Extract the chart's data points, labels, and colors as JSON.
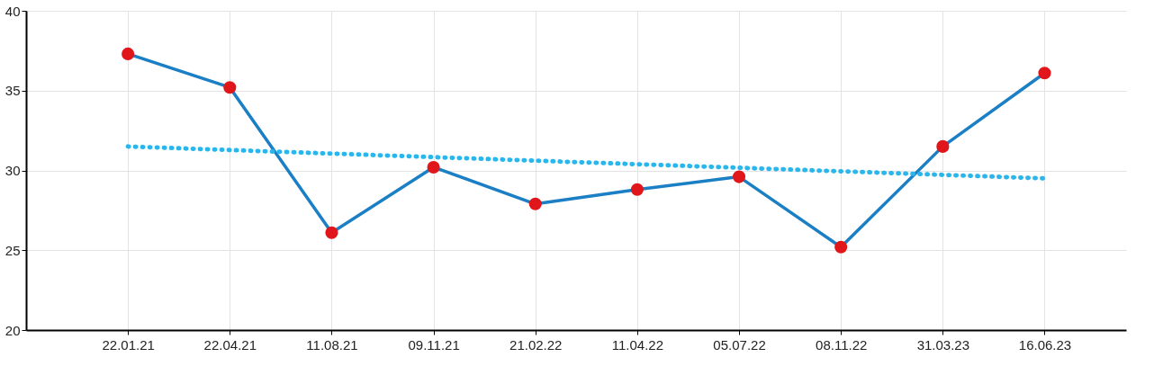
{
  "chart_data": {
    "type": "line",
    "categories": [
      "22.01.21",
      "22.04.21",
      "11.08.21",
      "09.11.21",
      "21.02.22",
      "11.04.22",
      "05.07.22",
      "08.11.22",
      "31.03.23",
      "16.06.23"
    ],
    "series": [
      {
        "color": "#1a7fc4",
        "colors": [
          "#e0161b",
          "#e0161b",
          "#e0161b",
          "#e0161b",
          "#e0161b",
          "#e0161b",
          "#e0161b",
          "#e0161b",
          "#e0161b",
          "#e0161b"
        ],
        "marker": "circle",
        "line_style": "solid",
        "values": [
          37.3,
          35.2,
          26.1,
          30.2,
          27.9,
          28.8,
          29.6,
          25.2,
          31.5,
          36.1
        ]
      },
      {
        "type": "line",
        "color": "#2bb5ea",
        "marker": "none",
        "line_style": "dotted",
        "x": [
          "22.01.21",
          "16.06.23"
        ],
        "values": [
          31.5,
          29.5
        ]
      }
    ],
    "ylim": [
      20,
      40
    ],
    "yticks": [
      20,
      25,
      30,
      35,
      40
    ],
    "grid": true
  }
}
